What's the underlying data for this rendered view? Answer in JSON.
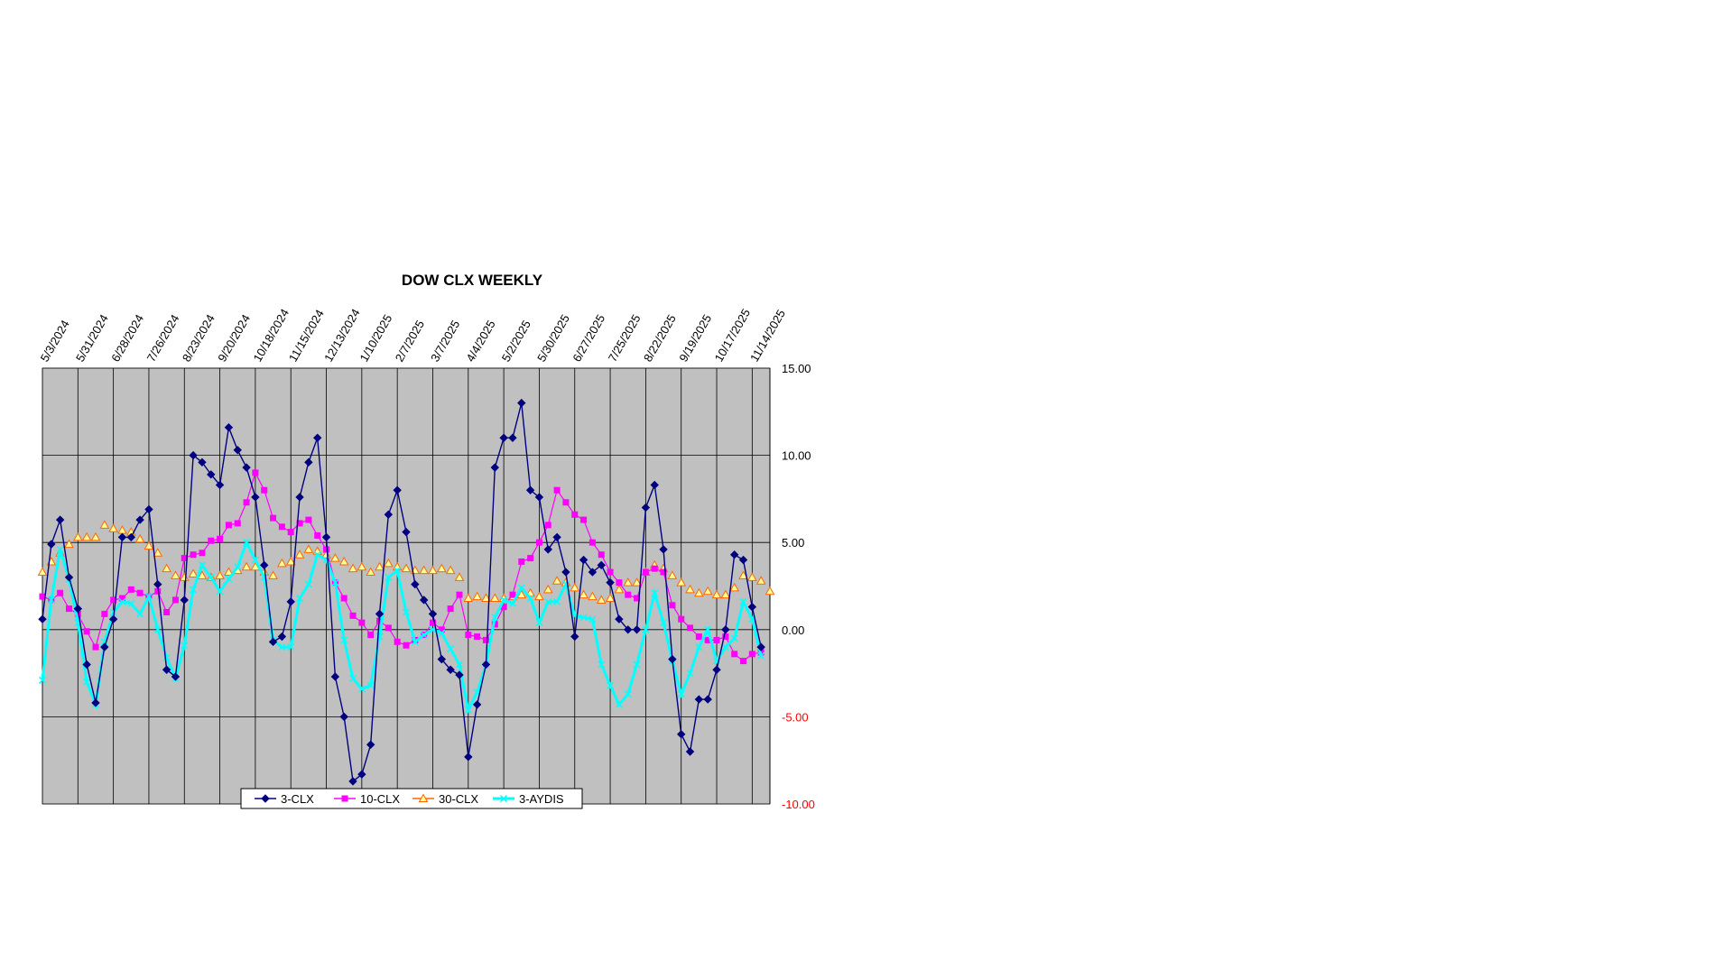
{
  "chart_data": {
    "type": "line",
    "title": "DOW CLX WEEKLY",
    "x_tick_labels": [
      "5/3/2024",
      "5/31/2024",
      "6/28/2024",
      "7/26/2024",
      "8/23/2024",
      "9/20/2024",
      "10/18/2024",
      "11/15/2024",
      "12/13/2024",
      "1/10/2025",
      "2/7/2025",
      "3/7/2025",
      "4/4/2025",
      "5/2/2025",
      "5/30/2025",
      "6/27/2025",
      "7/25/2025",
      "8/22/2025",
      "9/19/2025",
      "10/17/2025",
      "11/14/2025"
    ],
    "y_axis_position": "right",
    "y_tick_labels": [
      "15.00",
      "10.00",
      "5.00",
      "0.00",
      "-5.00",
      "-10.00"
    ],
    "ylim": [
      -10,
      15
    ],
    "grid": true,
    "plot_background": "#C0C0C0",
    "legend_position": "bottom",
    "series": [
      {
        "name": "3-CLX",
        "color": "#000080",
        "marker": "diamond",
        "values": [
          0.6,
          4.9,
          6.3,
          3.0,
          1.2,
          -2.0,
          -4.2,
          -1.0,
          0.6,
          5.3,
          5.3,
          6.3,
          6.9,
          2.6,
          -2.3,
          -2.7,
          1.7,
          10.0,
          9.6,
          8.9,
          8.3,
          11.6,
          10.3,
          9.3,
          7.6,
          3.7,
          -0.7,
          -0.4,
          1.6,
          7.6,
          9.6,
          11.0,
          5.3,
          -2.7,
          -5.0,
          -8.7,
          -8.3,
          -6.6,
          0.9,
          6.6,
          8.0,
          5.6,
          2.6,
          1.7,
          0.9,
          -1.7,
          -2.3,
          -2.6,
          -7.3,
          -4.3,
          -2.0,
          9.3,
          11.0,
          11.0,
          13.0,
          8.0,
          7.6,
          4.6,
          5.3,
          3.3,
          -0.4,
          4.0,
          3.3,
          3.7,
          2.7,
          0.6,
          0.0,
          0.0,
          7.0,
          8.3,
          4.6,
          -1.7,
          -6.0,
          -7.0,
          -4.0,
          -4.0,
          -2.3,
          0.0,
          4.3,
          4.0,
          1.3,
          -1.0
        ]
      },
      {
        "name": "10-CLX",
        "color": "#FF00FF",
        "marker": "square",
        "values": [
          1.9,
          1.7,
          2.1,
          1.2,
          0.9,
          -0.1,
          -1.0,
          0.9,
          1.7,
          1.8,
          2.3,
          2.1,
          1.9,
          2.2,
          1.0,
          1.7,
          4.1,
          4.3,
          4.4,
          5.1,
          5.2,
          6.0,
          6.1,
          7.3,
          9.0,
          8.0,
          6.4,
          5.9,
          5.6,
          6.1,
          6.3,
          5.4,
          4.6,
          2.7,
          1.8,
          0.8,
          0.4,
          -0.3,
          0.5,
          0.1,
          -0.7,
          -0.9,
          -0.6,
          -0.3,
          0.4,
          0.0,
          1.2,
          2.0,
          -0.3,
          -0.4,
          -0.6,
          0.3,
          1.3,
          2.0,
          3.9,
          4.1,
          5.0,
          6.0,
          8.0,
          7.3,
          6.6,
          6.3,
          5.0,
          4.3,
          3.3,
          2.7,
          2.0,
          1.8,
          3.3,
          3.5,
          3.3,
          1.4,
          0.6,
          0.1,
          -0.4,
          -0.6,
          -0.6,
          -0.4,
          -1.4,
          -1.8,
          -1.4,
          -1.3
        ]
      },
      {
        "name": "30-CLX",
        "color": "#FF6600",
        "marker": "triangle",
        "values": [
          3.3,
          3.9,
          4.4,
          4.9,
          5.3,
          5.3,
          5.3,
          6.0,
          5.8,
          5.7,
          5.6,
          5.2,
          4.8,
          4.4,
          3.5,
          3.1,
          3.0,
          3.2,
          3.1,
          3.0,
          3.1,
          3.3,
          3.4,
          3.6,
          3.6,
          3.3,
          3.1,
          3.8,
          3.9,
          4.3,
          4.6,
          4.5,
          4.3,
          4.1,
          3.9,
          3.5,
          3.6,
          3.3,
          3.6,
          3.8,
          3.6,
          3.5,
          3.4,
          3.4,
          3.4,
          3.5,
          3.4,
          3.0,
          1.8,
          1.9,
          1.8,
          1.8,
          1.8,
          1.9,
          2.0,
          2.1,
          1.9,
          2.3,
          2.8,
          2.7,
          2.4,
          2.0,
          1.9,
          1.7,
          1.8,
          2.3,
          2.7,
          2.7,
          3.3,
          3.7,
          3.5,
          3.1,
          2.7,
          2.3,
          2.1,
          2.2,
          2.0,
          2.0,
          2.4,
          3.1,
          3.0,
          2.8,
          2.2
        ]
      },
      {
        "name": "3-AYDIS",
        "color": "#00FFFF",
        "marker": "x",
        "values": [
          -2.9,
          1.7,
          4.6,
          2.9,
          0.4,
          -3.0,
          -4.3,
          -0.7,
          1.0,
          1.6,
          1.5,
          0.9,
          1.9,
          0.0,
          -1.6,
          -2.8,
          -0.9,
          2.3,
          3.7,
          3.0,
          2.2,
          2.9,
          3.6,
          5.0,
          4.0,
          3.0,
          -0.6,
          -1.0,
          -1.0,
          1.8,
          2.6,
          4.3,
          4.0,
          2.7,
          -0.6,
          -2.8,
          -3.4,
          -3.2,
          -0.4,
          3.0,
          3.4,
          1.0,
          -0.7,
          -0.3,
          0.0,
          -0.2,
          -1.1,
          -2.0,
          -4.6,
          -3.6,
          -2.0,
          0.7,
          1.7,
          1.5,
          2.4,
          1.8,
          0.4,
          1.6,
          1.6,
          2.6,
          0.8,
          0.7,
          0.6,
          -2.0,
          -3.2,
          -4.3,
          -3.7,
          -2.0,
          0.0,
          2.1,
          0.4,
          -1.8,
          -3.7,
          -2.5,
          -1.0,
          0.0,
          -1.8,
          -1.0,
          -0.5,
          1.6,
          0.6,
          -1.5
        ]
      }
    ]
  }
}
